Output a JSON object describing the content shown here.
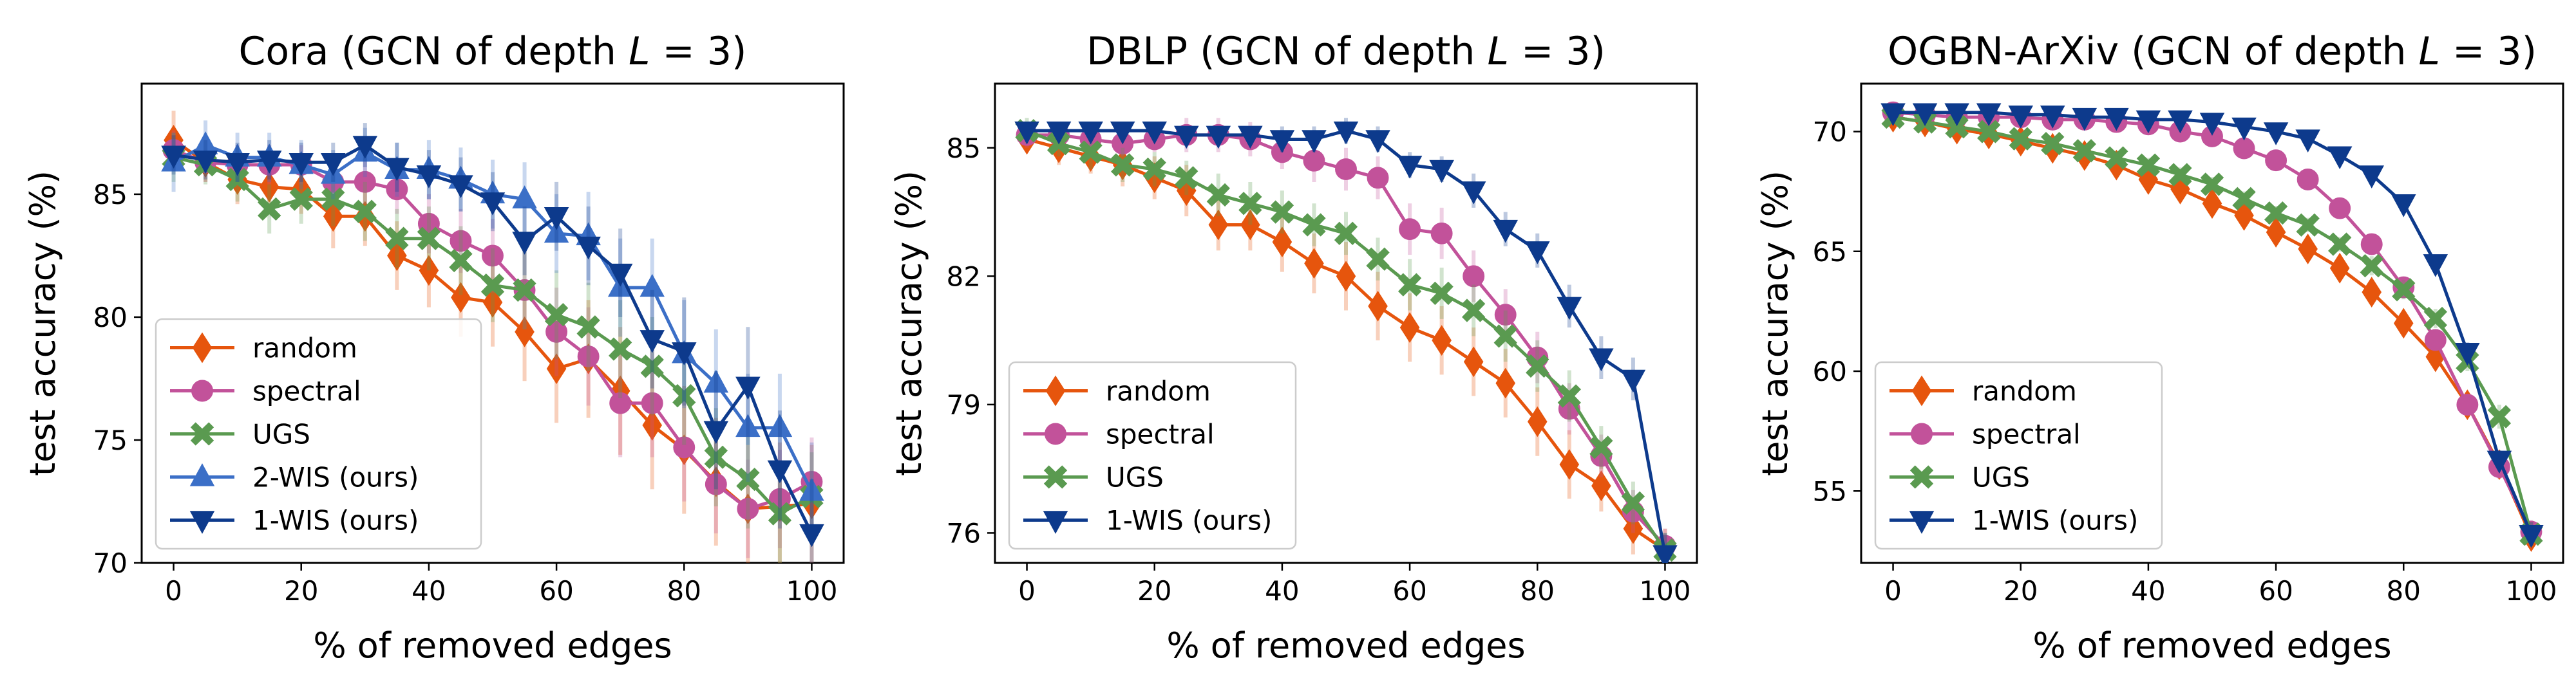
{
  "chart_data": [
    {
      "type": "line",
      "title": "Cora (GCN of depth L = 3)",
      "title_parts": [
        "Cora (GCN of depth ",
        "L",
        " = 3)"
      ],
      "xlabel": "% of removed edges",
      "ylabel": "test accuracy (%)",
      "xlim": [
        -5,
        105
      ],
      "ylim": [
        70,
        89.5
      ],
      "xticks": [
        0,
        20,
        40,
        60,
        80,
        100
      ],
      "yticks": [
        70,
        75,
        80,
        85
      ],
      "legend_position": "lower-left",
      "x": [
        0,
        5,
        10,
        15,
        20,
        25,
        30,
        35,
        40,
        45,
        50,
        55,
        60,
        65,
        70,
        75,
        80,
        85,
        90,
        95,
        100
      ],
      "series": [
        {
          "name": "random",
          "marker": "diamond",
          "color": "#e6550d",
          "values": [
            87.2,
            86.3,
            85.6,
            85.3,
            85.2,
            84.1,
            84.1,
            82.5,
            81.9,
            80.8,
            80.6,
            79.4,
            77.9,
            78.3,
            77.0,
            75.6,
            74.6,
            73.3,
            72.2,
            72.3,
            72.4
          ],
          "errors": [
            1.2,
            0.8,
            1.0,
            0.9,
            1.0,
            1.3,
            1.2,
            1.4,
            1.5,
            1.6,
            1.8,
            2.0,
            2.2,
            2.4,
            2.6,
            2.6,
            2.6,
            2.6,
            2.6,
            2.6,
            2.4
          ]
        },
        {
          "name": "spectral",
          "marker": "circle",
          "color": "#c2529a",
          "values": [
            86.8,
            86.3,
            86.2,
            86.2,
            86.2,
            85.5,
            85.5,
            85.2,
            83.8,
            83.1,
            82.5,
            81.1,
            79.4,
            78.4,
            76.5,
            76.5,
            74.7,
            73.2,
            72.2,
            72.6,
            73.3
          ],
          "errors": [
            0.8,
            0.8,
            0.8,
            0.8,
            0.8,
            0.9,
            0.9,
            1.0,
            1.2,
            1.3,
            1.5,
            1.6,
            1.8,
            2.0,
            2.2,
            2.2,
            2.2,
            2.0,
            2.0,
            2.0,
            1.8
          ]
        },
        {
          "name": "UGS",
          "marker": "x-filled",
          "color": "#5a9a50",
          "values": [
            86.5,
            86.2,
            85.6,
            84.4,
            84.8,
            84.8,
            84.3,
            83.2,
            83.2,
            82.3,
            81.3,
            81.1,
            80.1,
            79.6,
            78.7,
            78.0,
            76.8,
            74.3,
            73.4,
            72.0,
            72.7
          ],
          "errors": [
            1.0,
            0.8,
            0.9,
            1.0,
            1.0,
            1.1,
            1.2,
            1.2,
            1.3,
            1.4,
            1.5,
            1.6,
            1.8,
            1.8,
            2.0,
            2.0,
            2.0,
            2.0,
            2.0,
            2.0,
            1.8
          ]
        },
        {
          "name": "2-WIS (ours)",
          "marker": "triangle-up",
          "color": "#3b6fc7",
          "values": [
            86.3,
            87.0,
            86.5,
            86.5,
            86.2,
            85.8,
            86.7,
            86.0,
            86.0,
            85.6,
            85.0,
            84.8,
            83.4,
            83.3,
            81.2,
            81.2,
            78.5,
            77.3,
            75.5,
            75.5,
            72.9
          ],
          "errors": [
            1.2,
            1.0,
            1.0,
            1.0,
            1.0,
            1.0,
            1.0,
            1.1,
            1.2,
            1.3,
            1.4,
            1.5,
            1.6,
            1.8,
            2.0,
            2.0,
            2.2,
            2.2,
            2.2,
            2.2,
            2.0
          ]
        },
        {
          "name": "1-WIS (ours)",
          "marker": "triangle-down",
          "color": "#0d3a8c",
          "values": [
            86.6,
            86.4,
            86.3,
            86.4,
            86.3,
            86.3,
            87.0,
            86.1,
            85.8,
            85.4,
            84.7,
            83.1,
            84.1,
            82.9,
            81.8,
            79.1,
            78.6,
            75.4,
            77.2,
            73.8,
            71.2
          ],
          "errors": [
            0.8,
            0.8,
            0.8,
            0.8,
            0.8,
            0.8,
            0.9,
            1.0,
            1.0,
            1.1,
            1.2,
            1.4,
            1.4,
            1.6,
            1.8,
            2.0,
            2.2,
            2.4,
            2.4,
            2.4,
            2.2
          ]
        }
      ]
    },
    {
      "type": "line",
      "title": "DBLP (GCN of depth L = 3)",
      "title_parts": [
        "DBLP (GCN of depth ",
        "L",
        " = 3)"
      ],
      "xlabel": "% of removed edges",
      "ylabel": "test accuracy (%)",
      "xlim": [
        -5,
        105
      ],
      "ylim": [
        75.3,
        86.5
      ],
      "xticks": [
        0,
        20,
        40,
        60,
        80,
        100
      ],
      "yticks": [
        76,
        79,
        82,
        85
      ],
      "legend_position": "lower-left",
      "x": [
        0,
        5,
        10,
        15,
        20,
        25,
        30,
        35,
        40,
        45,
        50,
        55,
        60,
        65,
        70,
        75,
        80,
        85,
        90,
        95,
        100
      ],
      "series": [
        {
          "name": "random",
          "marker": "diamond",
          "color": "#e6550d",
          "values": [
            85.2,
            85.0,
            84.8,
            84.6,
            84.3,
            84.0,
            83.2,
            83.2,
            82.8,
            82.3,
            82.0,
            81.3,
            80.8,
            80.5,
            80.0,
            79.5,
            78.6,
            77.6,
            77.1,
            76.1,
            75.6
          ],
          "errors": [
            0.3,
            0.4,
            0.4,
            0.5,
            0.5,
            0.6,
            0.6,
            0.6,
            0.7,
            0.7,
            0.8,
            0.8,
            0.8,
            0.8,
            0.8,
            0.8,
            0.8,
            0.8,
            0.6,
            0.6,
            0.5
          ]
        },
        {
          "name": "spectral",
          "marker": "circle",
          "color": "#c2529a",
          "values": [
            85.3,
            85.3,
            85.2,
            85.1,
            85.2,
            85.3,
            85.3,
            85.2,
            84.9,
            84.7,
            84.5,
            84.3,
            83.1,
            83.0,
            82.0,
            81.1,
            80.1,
            78.9,
            77.8,
            76.5,
            75.7
          ],
          "errors": [
            0.3,
            0.3,
            0.3,
            0.3,
            0.3,
            0.4,
            0.4,
            0.4,
            0.4,
            0.5,
            0.5,
            0.5,
            0.6,
            0.6,
            0.6,
            0.6,
            0.6,
            0.6,
            0.5,
            0.5,
            0.4
          ]
        },
        {
          "name": "UGS",
          "marker": "x-filled",
          "color": "#5a9a50",
          "values": [
            85.4,
            85.1,
            84.9,
            84.6,
            84.5,
            84.3,
            83.9,
            83.7,
            83.5,
            83.2,
            83.0,
            82.4,
            81.8,
            81.6,
            81.2,
            80.6,
            79.9,
            79.2,
            78.0,
            76.7,
            75.6
          ],
          "errors": [
            0.3,
            0.3,
            0.4,
            0.4,
            0.4,
            0.4,
            0.5,
            0.5,
            0.5,
            0.5,
            0.5,
            0.5,
            0.6,
            0.6,
            0.6,
            0.6,
            0.6,
            0.6,
            0.5,
            0.5,
            0.4
          ]
        },
        {
          "name": "1-WIS (ours)",
          "marker": "triangle-down",
          "color": "#0d3a8c",
          "values": [
            85.4,
            85.4,
            85.4,
            85.4,
            85.4,
            85.3,
            85.3,
            85.3,
            85.2,
            85.2,
            85.4,
            85.2,
            84.6,
            84.5,
            84.0,
            83.1,
            82.6,
            81.3,
            80.1,
            79.6,
            75.5
          ],
          "errors": [
            0.2,
            0.2,
            0.2,
            0.2,
            0.2,
            0.2,
            0.2,
            0.2,
            0.3,
            0.3,
            0.3,
            0.3,
            0.3,
            0.3,
            0.4,
            0.4,
            0.4,
            0.5,
            0.5,
            0.5,
            0.5
          ]
        }
      ]
    },
    {
      "type": "line",
      "title": "OGBN-ArXiv (GCN of depth L = 3)",
      "title_parts": [
        "OGBN-ArXiv (GCN of depth ",
        "L",
        " = 3)"
      ],
      "xlabel": "% of removed edges",
      "ylabel": "test accuracy (%)",
      "xlim": [
        -5,
        105
      ],
      "ylim": [
        52,
        72
      ],
      "xticks": [
        0,
        20,
        40,
        60,
        80,
        100
      ],
      "yticks": [
        55,
        60,
        65,
        70
      ],
      "legend_position": "lower-left",
      "x": [
        0,
        5,
        10,
        15,
        20,
        25,
        30,
        35,
        40,
        45,
        50,
        55,
        60,
        65,
        70,
        75,
        80,
        85,
        90,
        95,
        100
      ],
      "series": [
        {
          "name": "random",
          "marker": "diamond",
          "color": "#e6550d",
          "values": [
            70.6,
            70.4,
            70.1,
            69.9,
            69.6,
            69.3,
            69.0,
            68.6,
            68.0,
            67.6,
            67.0,
            66.5,
            65.8,
            65.1,
            64.3,
            63.3,
            62.0,
            60.6,
            58.6,
            56.1,
            53.1
          ],
          "errors": [
            0.2,
            0.2,
            0.2,
            0.2,
            0.2,
            0.2,
            0.3,
            0.3,
            0.3,
            0.3,
            0.3,
            0.3,
            0.3,
            0.3,
            0.4,
            0.4,
            0.4,
            0.4,
            0.5,
            0.5,
            0.5
          ]
        },
        {
          "name": "spectral",
          "marker": "circle",
          "color": "#c2529a",
          "values": [
            70.8,
            70.7,
            70.6,
            70.6,
            70.6,
            70.5,
            70.5,
            70.4,
            70.3,
            70.0,
            69.8,
            69.3,
            68.8,
            68.0,
            66.8,
            65.3,
            63.5,
            61.3,
            58.6,
            56.0,
            53.3
          ],
          "errors": [
            0.2,
            0.2,
            0.2,
            0.2,
            0.2,
            0.2,
            0.2,
            0.2,
            0.2,
            0.2,
            0.2,
            0.3,
            0.3,
            0.3,
            0.3,
            0.3,
            0.4,
            0.4,
            0.4,
            0.5,
            0.5
          ]
        },
        {
          "name": "UGS",
          "marker": "x-filled",
          "color": "#5a9a50",
          "values": [
            70.6,
            70.4,
            70.2,
            70.0,
            69.7,
            69.5,
            69.2,
            68.9,
            68.6,
            68.2,
            67.8,
            67.2,
            66.6,
            66.1,
            65.3,
            64.4,
            63.4,
            62.2,
            60.4,
            58.1,
            53.2
          ],
          "errors": [
            0.2,
            0.2,
            0.2,
            0.2,
            0.2,
            0.2,
            0.2,
            0.3,
            0.3,
            0.3,
            0.3,
            0.3,
            0.3,
            0.3,
            0.3,
            0.4,
            0.4,
            0.4,
            0.4,
            0.5,
            0.5
          ]
        },
        {
          "name": "1-WIS (ours)",
          "marker": "triangle-down",
          "color": "#0d3a8c",
          "values": [
            70.8,
            70.8,
            70.8,
            70.8,
            70.7,
            70.7,
            70.6,
            70.6,
            70.5,
            70.5,
            70.4,
            70.2,
            70.0,
            69.7,
            69.0,
            68.2,
            67.0,
            64.5,
            60.8,
            56.3,
            53.2
          ],
          "errors": [
            0.1,
            0.1,
            0.1,
            0.1,
            0.1,
            0.1,
            0.1,
            0.1,
            0.1,
            0.2,
            0.2,
            0.2,
            0.2,
            0.2,
            0.2,
            0.3,
            0.3,
            0.3,
            0.4,
            0.4,
            0.5
          ]
        }
      ]
    }
  ]
}
